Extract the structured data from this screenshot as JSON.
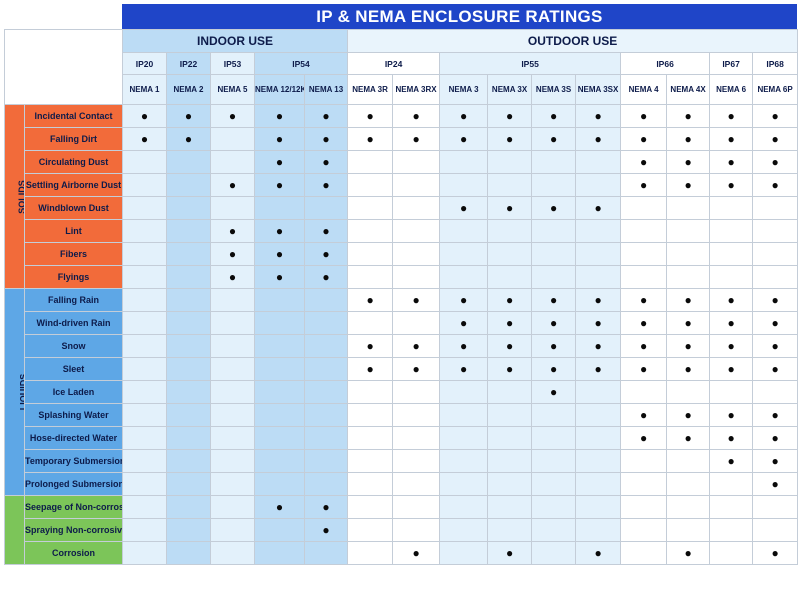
{
  "title": "IP & NEMA ENCLOSURE RATINGS",
  "groups": {
    "indoor": "INDOOR USE",
    "outdoor": "OUTDOOR USE"
  },
  "ip_ratings": [
    {
      "label": "IP20",
      "span": 1
    },
    {
      "label": "IP22",
      "span": 1
    },
    {
      "label": "IP53",
      "span": 1
    },
    {
      "label": "IP54",
      "span": 2
    },
    {
      "label": "IP24",
      "span": 2
    },
    {
      "label": "IP55",
      "span": 4
    },
    {
      "label": "IP66",
      "span": 2
    },
    {
      "label": "IP67",
      "span": 1
    },
    {
      "label": "IP68",
      "span": 1
    }
  ],
  "nema_types": [
    "NEMA 1",
    "NEMA 2",
    "NEMA 5",
    "NEMA 12/12K",
    "NEMA 13",
    "NEMA 3R",
    "NEMA 3RX",
    "NEMA 3",
    "NEMA 3X",
    "NEMA 3S",
    "NEMA 3SX",
    "NEMA 4",
    "NEMA 4X",
    "NEMA 6",
    "NEMA 6P"
  ],
  "dot_symbol": "●",
  "categories": [
    {
      "name": "SOLIDS",
      "color": "#f26b3a",
      "rows": [
        {
          "label": "Incidental Contact",
          "marks": [
            1,
            1,
            1,
            1,
            1,
            1,
            1,
            1,
            1,
            1,
            1,
            1,
            1,
            1,
            1
          ]
        },
        {
          "label": "Falling Dirt",
          "marks": [
            1,
            1,
            0,
            1,
            1,
            1,
            1,
            1,
            1,
            1,
            1,
            1,
            1,
            1,
            1
          ]
        },
        {
          "label": "Circulating Dust",
          "marks": [
            0,
            0,
            0,
            1,
            1,
            0,
            0,
            0,
            0,
            0,
            0,
            1,
            1,
            1,
            1
          ]
        },
        {
          "label": "Settling Airborne Dust",
          "marks": [
            0,
            0,
            1,
            1,
            1,
            0,
            0,
            0,
            0,
            0,
            0,
            1,
            1,
            1,
            1
          ]
        },
        {
          "label": "Windblown Dust",
          "marks": [
            0,
            0,
            0,
            0,
            0,
            0,
            0,
            1,
            1,
            1,
            1,
            0,
            0,
            0,
            0
          ]
        },
        {
          "label": "Lint",
          "marks": [
            0,
            0,
            1,
            1,
            1,
            0,
            0,
            0,
            0,
            0,
            0,
            0,
            0,
            0,
            0
          ]
        },
        {
          "label": "Fibers",
          "marks": [
            0,
            0,
            1,
            1,
            1,
            0,
            0,
            0,
            0,
            0,
            0,
            0,
            0,
            0,
            0
          ]
        },
        {
          "label": "Flyings",
          "marks": [
            0,
            0,
            1,
            1,
            1,
            0,
            0,
            0,
            0,
            0,
            0,
            0,
            0,
            0,
            0
          ]
        }
      ]
    },
    {
      "name": "LIQUIDS",
      "color": "#5ea7e6",
      "rows": [
        {
          "label": "Falling Rain",
          "marks": [
            0,
            0,
            0,
            0,
            0,
            1,
            1,
            1,
            1,
            1,
            1,
            1,
            1,
            1,
            1
          ]
        },
        {
          "label": "Wind-driven Rain",
          "marks": [
            0,
            0,
            0,
            0,
            0,
            0,
            0,
            1,
            1,
            1,
            1,
            1,
            1,
            1,
            1
          ]
        },
        {
          "label": "Snow",
          "marks": [
            0,
            0,
            0,
            0,
            0,
            1,
            1,
            1,
            1,
            1,
            1,
            1,
            1,
            1,
            1
          ]
        },
        {
          "label": "Sleet",
          "marks": [
            0,
            0,
            0,
            0,
            0,
            1,
            1,
            1,
            1,
            1,
            1,
            1,
            1,
            1,
            1
          ]
        },
        {
          "label": "Ice Laden",
          "marks": [
            0,
            0,
            0,
            0,
            0,
            0,
            0,
            0,
            0,
            1,
            0,
            0,
            0,
            0,
            0
          ]
        },
        {
          "label": "Splashing Water",
          "marks": [
            0,
            0,
            0,
            0,
            0,
            0,
            0,
            0,
            0,
            0,
            0,
            1,
            1,
            1,
            1
          ]
        },
        {
          "label": "Hose-directed Water",
          "marks": [
            0,
            0,
            0,
            0,
            0,
            0,
            0,
            0,
            0,
            0,
            0,
            1,
            1,
            1,
            1
          ]
        },
        {
          "label": "Temporary Submersion",
          "marks": [
            0,
            0,
            0,
            0,
            0,
            0,
            0,
            0,
            0,
            0,
            0,
            0,
            0,
            1,
            1
          ]
        },
        {
          "label": "Prolonged Submersion",
          "marks": [
            0,
            0,
            0,
            0,
            0,
            0,
            0,
            0,
            0,
            0,
            0,
            0,
            0,
            0,
            1
          ]
        }
      ]
    },
    {
      "name": "CHEMICALS",
      "color": "#7cc559",
      "rows": [
        {
          "label": "Seepage of Non-corrosive Liquids",
          "marks": [
            0,
            0,
            0,
            1,
            1,
            0,
            0,
            0,
            0,
            0,
            0,
            0,
            0,
            0,
            0
          ]
        },
        {
          "label": "Spraying Non-corrosive Liquids",
          "marks": [
            0,
            0,
            0,
            0,
            1,
            0,
            0,
            0,
            0,
            0,
            0,
            0,
            0,
            0,
            0
          ]
        },
        {
          "label": "Corrosion",
          "marks": [
            0,
            0,
            0,
            0,
            0,
            0,
            1,
            0,
            1,
            0,
            1,
            0,
            1,
            0,
            1
          ]
        }
      ]
    }
  ],
  "colors": {
    "title_bg": "#1f45c8",
    "solids": "#f26b3a",
    "liquids": "#5ea7e6",
    "chemicals": "#7cc559",
    "indoor_light": "#e3f1fb",
    "indoor_dark": "#bcdcf5"
  }
}
